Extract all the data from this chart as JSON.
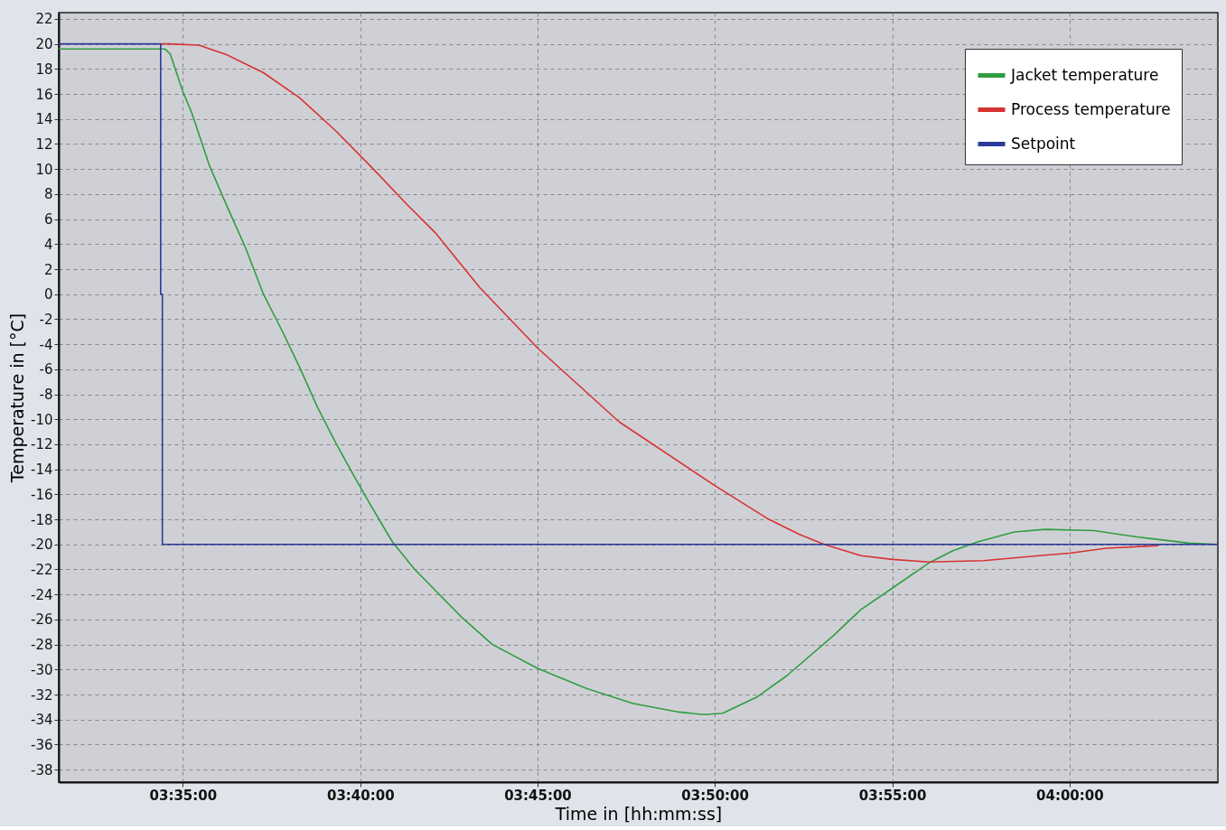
{
  "chart_data": {
    "type": "line",
    "xlabel": "Time in [hh:mm:ss]",
    "ylabel": "Temperature in [°C]",
    "xlim": [
      3.525,
      4.0697
    ],
    "ylim": [
      -39,
      22.5
    ],
    "xticks": [
      {
        "value": 3.5833,
        "label": "03:35:00"
      },
      {
        "value": 3.6667,
        "label": "03:40:00"
      },
      {
        "value": 3.75,
        "label": "03:45:00"
      },
      {
        "value": 3.8333,
        "label": "03:50:00"
      },
      {
        "value": 3.9167,
        "label": "03:55:00"
      },
      {
        "value": 4.0,
        "label": "04:00:00"
      }
    ],
    "yticks": [
      -38,
      -36,
      -34,
      -32,
      -30,
      -28,
      -26,
      -24,
      -22,
      -20,
      -18,
      -16,
      -14,
      -12,
      -10,
      -8,
      -6,
      -4,
      -2,
      0,
      2,
      4,
      6,
      8,
      10,
      12,
      14,
      16,
      18,
      20,
      22
    ],
    "grid": true,
    "legend": "top right",
    "line_style": "solid",
    "marker": "none",
    "series": [
      {
        "name": "Jacket temperature",
        "color": "#2f9e3f",
        "x": [
          3.525,
          3.5749,
          3.5774,
          3.5833,
          3.5875,
          3.596,
          3.6044,
          3.6128,
          3.6212,
          3.6296,
          3.6381,
          3.6465,
          3.6549,
          3.6633,
          3.6717,
          3.6818,
          3.6923,
          3.7142,
          3.7288,
          3.75,
          3.7727,
          3.7946,
          3.8165,
          3.8282,
          3.837,
          3.8531,
          3.8671,
          3.889,
          3.902,
          3.9167,
          3.9337,
          3.9452,
          3.9568,
          3.9741,
          3.9885,
          4.0115,
          4.0317,
          4.0562,
          4.0692
        ],
        "values": [
          19.6,
          19.6,
          19.2,
          16.2,
          14.5,
          10.2,
          6.9,
          3.7,
          0.0,
          -2.8,
          -5.8,
          -9.0,
          -11.8,
          -14.4,
          -16.9,
          -19.8,
          -22.0,
          -25.8,
          -28.0,
          -29.9,
          -31.5,
          -32.7,
          -33.4,
          -33.6,
          -33.5,
          -32.2,
          -30.5,
          -27.3,
          -25.2,
          -23.5,
          -21.5,
          -20.5,
          -19.8,
          -19.0,
          -18.8,
          -18.9,
          -19.4,
          -19.9,
          -20.0
        ]
      },
      {
        "name": "Process temperature",
        "color": "#d83232",
        "x": [
          3.5729,
          3.5774,
          3.5909,
          3.6044,
          3.6212,
          3.6381,
          3.6549,
          3.6717,
          3.6885,
          3.702,
          3.723,
          3.75,
          3.7883,
          3.8333,
          3.8587,
          3.8731,
          3.8847,
          3.902,
          3.9167,
          3.9337,
          3.9597,
          3.9856,
          4.0,
          4.0173,
          4.0418
        ],
        "values": [
          20.0,
          20.0,
          19.9,
          19.1,
          17.7,
          15.7,
          13.1,
          10.2,
          7.2,
          4.9,
          0.5,
          -4.3,
          -10.2,
          -15.3,
          -18.0,
          -19.2,
          -20.0,
          -20.9,
          -21.2,
          -21.4,
          -21.3,
          -20.9,
          -20.7,
          -20.3,
          -20.1
        ]
      },
      {
        "name": "Setpoint",
        "color": "#2a3a9a",
        "x": [
          3.525,
          3.5729,
          3.5729,
          3.5737,
          3.5737,
          4.0697
        ],
        "values": [
          20,
          20,
          0,
          0,
          -20,
          -20
        ]
      }
    ]
  }
}
